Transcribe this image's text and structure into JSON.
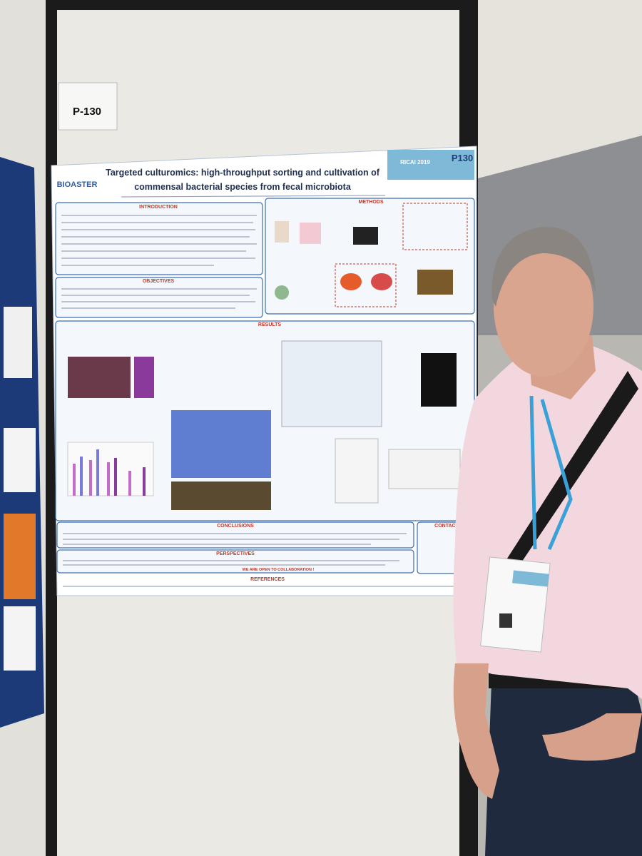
{
  "label": "P-130",
  "poster": {
    "title_line1": "Targeted culturomics: high-throughput sorting and cultivation of",
    "title_line2": "commensal bacterial species from fecal microbiota",
    "logo": "BIOASTER",
    "badge": "RICAI 2019",
    "number": "P130",
    "sections": [
      "INTRODUCTION",
      "METHODS",
      "OBJECTIVES",
      "RESULTS",
      "CONCLUSIONS",
      "CONTACT",
      "PERSPECTIVES",
      "REFERENCES"
    ],
    "slogan": "WE ARE OPEN TO COLLABORATION !"
  }
}
